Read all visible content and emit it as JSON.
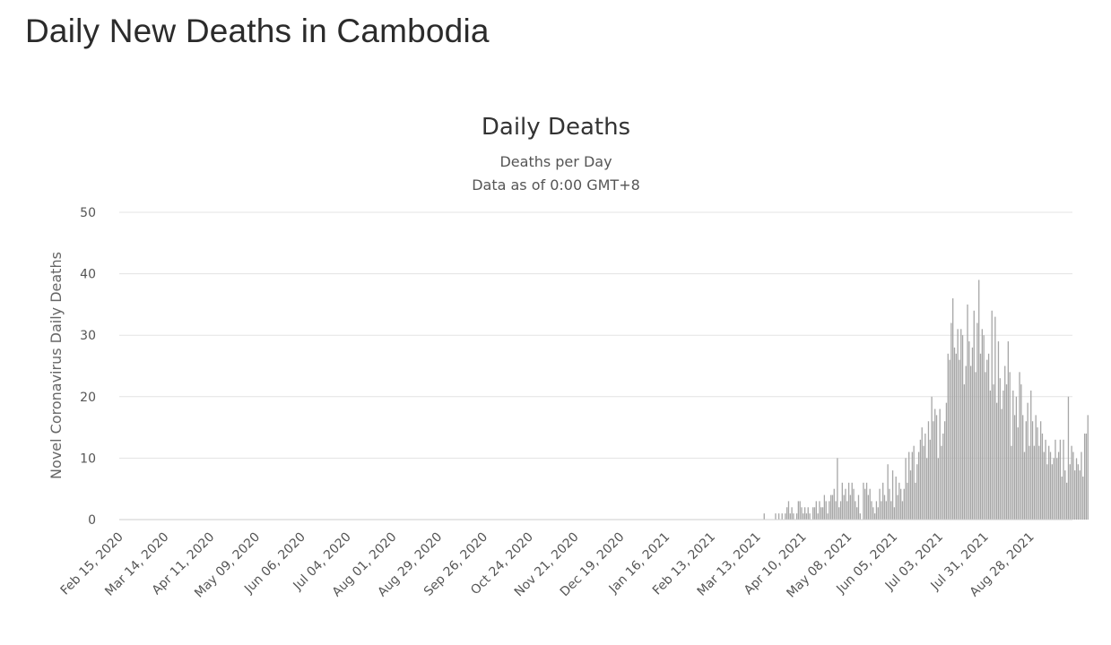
{
  "page": {
    "title": "Daily New Deaths in Cambodia"
  },
  "chart_data": {
    "type": "bar",
    "title": "Daily Deaths",
    "subtitle": "Deaths per Day",
    "subtitle2": "Data as of 0:00 GMT+8",
    "xlabel": "",
    "ylabel": "Novel Coronavirus Daily Deaths",
    "ylim": [
      0,
      50
    ],
    "yticks": [
      0,
      10,
      20,
      30,
      40,
      50
    ],
    "grid": true,
    "bar_color": "#a6a6a6",
    "x_start": "2020-02-15",
    "x_end": "2021-09-22",
    "x_tick_labels": [
      "Feb 15, 2020",
      "Mar 14, 2020",
      "Apr 11, 2020",
      "May 09, 2020",
      "Jun 06, 2020",
      "Jul 04, 2020",
      "Aug 01, 2020",
      "Aug 29, 2020",
      "Sep 26, 2020",
      "Oct 24, 2020",
      "Nov 21, 2020",
      "Dec 19, 2020",
      "Jan 16, 2021",
      "Feb 13, 2021",
      "Mar 13, 2021",
      "Apr 10, 2021",
      "May 08, 2021",
      "Jun 05, 2021",
      "Jul 03, 2021",
      "Jul 31, 2021",
      "Aug 28, 2021"
    ],
    "x_tick_dates": [
      "2020-02-15",
      "2020-03-14",
      "2020-04-11",
      "2020-05-09",
      "2020-06-06",
      "2020-07-04",
      "2020-08-01",
      "2020-08-29",
      "2020-09-26",
      "2020-10-24",
      "2020-11-21",
      "2020-12-19",
      "2021-01-16",
      "2021-02-13",
      "2021-03-13",
      "2021-04-10",
      "2021-05-08",
      "2021-06-05",
      "2021-07-03",
      "2021-07-31",
      "2021-08-28"
    ],
    "series": [
      {
        "start_date": "2021-03-17",
        "values": [
          1,
          0,
          0,
          0,
          0,
          0,
          0,
          1,
          0,
          1,
          0,
          1,
          0,
          1,
          2,
          3,
          1,
          2,
          1,
          0,
          1,
          3,
          3,
          2,
          1,
          2,
          1,
          2,
          1,
          0,
          2,
          2,
          3,
          1,
          3,
          2,
          2,
          4,
          3,
          1,
          3,
          4,
          4,
          5,
          3,
          10,
          2,
          3,
          6,
          4,
          5,
          3,
          6,
          4,
          6,
          5,
          3,
          2,
          4,
          1,
          0,
          6,
          5,
          6,
          4,
          5,
          3,
          2,
          1,
          3,
          2,
          5,
          3,
          6,
          4,
          3,
          9,
          5,
          3,
          8,
          2,
          7,
          4,
          6,
          5,
          3,
          5,
          10,
          6,
          11,
          8,
          11,
          12,
          6,
          9,
          11,
          13,
          15,
          12,
          14,
          10,
          16,
          13,
          20,
          16,
          18,
          17,
          10,
          18,
          12,
          14,
          16,
          19,
          27,
          26,
          32,
          36,
          28,
          27,
          31,
          26,
          31,
          30,
          22,
          25,
          35,
          29,
          25,
          28,
          34,
          24,
          32,
          39,
          27,
          31,
          30,
          24,
          26,
          27,
          21,
          34,
          22,
          33,
          19,
          29,
          23,
          18,
          21,
          25,
          22,
          29,
          24,
          12,
          21,
          17,
          20,
          15,
          24,
          22,
          17,
          11,
          16,
          19,
          12,
          21,
          16,
          12,
          17,
          15,
          12,
          16,
          14,
          11,
          13,
          9,
          12,
          11,
          9,
          10,
          13,
          10,
          11,
          13,
          7,
          13,
          8,
          6,
          20,
          9,
          12,
          11,
          8,
          10,
          9,
          8,
          11,
          7,
          14,
          14,
          17
        ]
      }
    ]
  }
}
